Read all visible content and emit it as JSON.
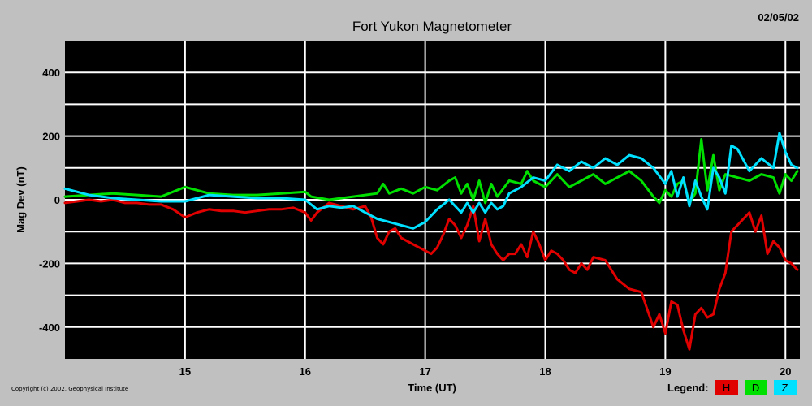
{
  "date": "02/05/02",
  "copyright": "Copyright (c) 2002, Geophysical Institute",
  "legend": {
    "label": "Legend:",
    "items": [
      {
        "name": "H",
        "color": "#e00000"
      },
      {
        "name": "D",
        "color": "#00e000"
      },
      {
        "name": "Z",
        "color": "#00e0ff"
      }
    ]
  },
  "chart_data": {
    "type": "line",
    "title": "Fort Yukon Magnetometer",
    "xlabel": "Time (UT)",
    "ylabel": "Mag Dev (nT)",
    "xlim": [
      14.0,
      20.12
    ],
    "ylim": [
      -500,
      500
    ],
    "xticks": [
      15,
      16,
      17,
      18,
      19,
      20
    ],
    "yticks": [
      -400,
      -200,
      0,
      200,
      400
    ],
    "grid": true,
    "background": "#000000",
    "grid_color": "#ffffff",
    "series": [
      {
        "name": "H",
        "color": "#e00000",
        "x": [
          14.0,
          14.1,
          14.2,
          14.3,
          14.4,
          14.5,
          14.6,
          14.7,
          14.8,
          14.9,
          15.0,
          15.1,
          15.2,
          15.3,
          15.4,
          15.5,
          15.6,
          15.7,
          15.8,
          15.9,
          16.0,
          16.05,
          16.1,
          16.2,
          16.3,
          16.4,
          16.5,
          16.55,
          16.6,
          16.65,
          16.7,
          16.75,
          16.8,
          16.9,
          17.0,
          17.05,
          17.1,
          17.15,
          17.2,
          17.25,
          17.3,
          17.35,
          17.4,
          17.45,
          17.5,
          17.55,
          17.6,
          17.65,
          17.7,
          17.75,
          17.8,
          17.85,
          17.9,
          17.95,
          18.0,
          18.05,
          18.1,
          18.15,
          18.2,
          18.25,
          18.3,
          18.35,
          18.4,
          18.5,
          18.6,
          18.7,
          18.8,
          18.9,
          18.95,
          19.0,
          19.05,
          19.1,
          19.15,
          19.2,
          19.25,
          19.3,
          19.35,
          19.4,
          19.45,
          19.5,
          19.55,
          19.6,
          19.65,
          19.7,
          19.75,
          19.8,
          19.85,
          19.9,
          19.95,
          20.0,
          20.05,
          20.1
        ],
        "values": [
          -10,
          -5,
          0,
          -5,
          0,
          -10,
          -10,
          -15,
          -15,
          -30,
          -55,
          -40,
          -30,
          -35,
          -35,
          -40,
          -35,
          -30,
          -30,
          -25,
          -40,
          -65,
          -40,
          -10,
          -20,
          -30,
          -20,
          -55,
          -120,
          -140,
          -100,
          -90,
          -120,
          -140,
          -160,
          -170,
          -150,
          -110,
          -60,
          -80,
          -120,
          -80,
          -20,
          -130,
          -60,
          -140,
          -170,
          -190,
          -170,
          -170,
          -140,
          -180,
          -100,
          -140,
          -190,
          -160,
          -170,
          -190,
          -220,
          -230,
          -200,
          -220,
          -180,
          -190,
          -250,
          -280,
          -290,
          -400,
          -360,
          -420,
          -320,
          -330,
          -410,
          -470,
          -360,
          -340,
          -370,
          -360,
          -280,
          -230,
          -100,
          -80,
          -60,
          -40,
          -100,
          -50,
          -170,
          -130,
          -150,
          -190,
          -200,
          -220
        ]
      },
      {
        "name": "D",
        "color": "#00e000",
        "x": [
          14.0,
          14.2,
          14.4,
          14.6,
          14.8,
          15.0,
          15.2,
          15.4,
          15.6,
          15.8,
          16.0,
          16.05,
          16.2,
          16.4,
          16.6,
          16.65,
          16.7,
          16.8,
          16.9,
          17.0,
          17.1,
          17.2,
          17.25,
          17.3,
          17.35,
          17.4,
          17.45,
          17.5,
          17.55,
          17.6,
          17.7,
          17.8,
          17.85,
          17.9,
          18.0,
          18.1,
          18.2,
          18.3,
          18.4,
          18.5,
          18.6,
          18.7,
          18.8,
          18.9,
          18.95,
          19.0,
          19.05,
          19.1,
          19.15,
          19.2,
          19.25,
          19.3,
          19.35,
          19.4,
          19.45,
          19.5,
          19.6,
          19.7,
          19.8,
          19.9,
          19.95,
          20.0,
          20.05,
          20.1
        ],
        "values": [
          10,
          15,
          20,
          15,
          10,
          40,
          20,
          15,
          15,
          20,
          25,
          10,
          0,
          10,
          20,
          50,
          20,
          35,
          20,
          40,
          30,
          60,
          70,
          20,
          50,
          0,
          60,
          -10,
          50,
          10,
          60,
          50,
          90,
          60,
          40,
          80,
          40,
          60,
          80,
          50,
          70,
          90,
          60,
          10,
          -10,
          30,
          10,
          50,
          60,
          -10,
          20,
          190,
          30,
          140,
          30,
          80,
          70,
          60,
          80,
          70,
          20,
          80,
          60,
          90
        ]
      },
      {
        "name": "Z",
        "color": "#00e0ff",
        "x": [
          14.0,
          14.2,
          14.4,
          14.6,
          14.8,
          15.0,
          15.2,
          15.4,
          15.6,
          15.8,
          16.0,
          16.1,
          16.2,
          16.3,
          16.4,
          16.5,
          16.6,
          16.7,
          16.8,
          16.9,
          17.0,
          17.1,
          17.2,
          17.3,
          17.35,
          17.4,
          17.45,
          17.5,
          17.55,
          17.6,
          17.65,
          17.7,
          17.8,
          17.9,
          18.0,
          18.1,
          18.2,
          18.3,
          18.4,
          18.5,
          18.6,
          18.7,
          18.8,
          18.9,
          19.0,
          19.05,
          19.1,
          19.15,
          19.2,
          19.25,
          19.3,
          19.35,
          19.4,
          19.45,
          19.5,
          19.55,
          19.6,
          19.7,
          19.8,
          19.9,
          19.95,
          20.0,
          20.05,
          20.1
        ],
        "values": [
          35,
          15,
          5,
          0,
          -5,
          -5,
          15,
          10,
          5,
          5,
          0,
          -30,
          -20,
          -25,
          -20,
          -40,
          -60,
          -70,
          -80,
          -90,
          -70,
          -30,
          0,
          -40,
          -10,
          -40,
          -10,
          -40,
          -10,
          -30,
          -20,
          20,
          40,
          70,
          60,
          110,
          90,
          120,
          100,
          130,
          110,
          140,
          130,
          100,
          50,
          90,
          10,
          70,
          -20,
          60,
          10,
          -30,
          100,
          70,
          20,
          170,
          160,
          90,
          130,
          100,
          210,
          150,
          110,
          100
        ]
      }
    ]
  }
}
